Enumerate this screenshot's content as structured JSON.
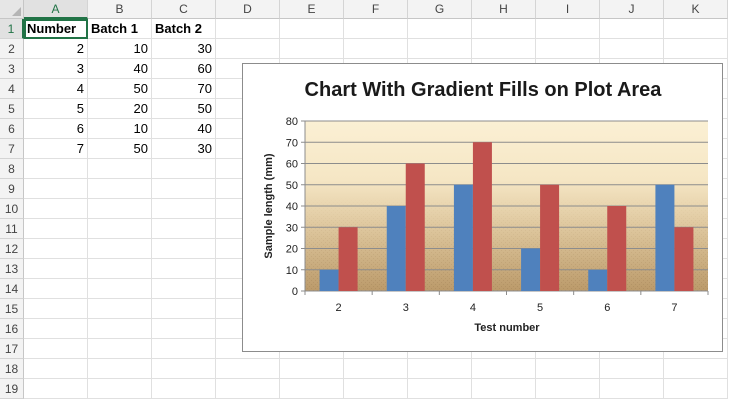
{
  "columns": [
    "A",
    "B",
    "C",
    "D",
    "E",
    "F",
    "G",
    "H",
    "I",
    "J",
    "K"
  ],
  "rows": [
    "1",
    "2",
    "3",
    "4",
    "5",
    "6",
    "7",
    "8",
    "9",
    "10",
    "11",
    "12",
    "13",
    "14",
    "15",
    "16",
    "17",
    "18",
    "19"
  ],
  "cells": [
    [
      {
        "v": "Number",
        "bold": true
      },
      {
        "v": "Batch 1",
        "bold": true
      },
      {
        "v": "Batch 2",
        "bold": true
      }
    ],
    [
      {
        "v": "2",
        "num": true
      },
      {
        "v": "10",
        "num": true
      },
      {
        "v": "30",
        "num": true
      }
    ],
    [
      {
        "v": "3",
        "num": true
      },
      {
        "v": "40",
        "num": true
      },
      {
        "v": "60",
        "num": true
      }
    ],
    [
      {
        "v": "4",
        "num": true
      },
      {
        "v": "50",
        "num": true
      },
      {
        "v": "70",
        "num": true
      }
    ],
    [
      {
        "v": "5",
        "num": true
      },
      {
        "v": "20",
        "num": true
      },
      {
        "v": "50",
        "num": true
      }
    ],
    [
      {
        "v": "6",
        "num": true
      },
      {
        "v": "10",
        "num": true
      },
      {
        "v": "40",
        "num": true
      }
    ],
    [
      {
        "v": "7",
        "num": true
      },
      {
        "v": "50",
        "num": true
      },
      {
        "v": "30",
        "num": true
      }
    ]
  ],
  "active_cell": "A1",
  "chart_data": {
    "type": "bar",
    "title": "Chart With Gradient Fills on Plot Area",
    "xlabel": "Test number",
    "ylabel": "Sample length (mm)",
    "categories": [
      "2",
      "3",
      "4",
      "5",
      "6",
      "7"
    ],
    "series": [
      {
        "values": [
          10,
          40,
          50,
          20,
          10,
          50
        ],
        "color": "#4f81bd"
      },
      {
        "values": [
          30,
          60,
          70,
          50,
          40,
          30
        ],
        "color": "#c0504d"
      }
    ],
    "ylim": [
      0,
      80
    ],
    "yticks": [
      0,
      10,
      20,
      30,
      40,
      50,
      60,
      70,
      80
    ],
    "grid": true,
    "legend": "none"
  }
}
